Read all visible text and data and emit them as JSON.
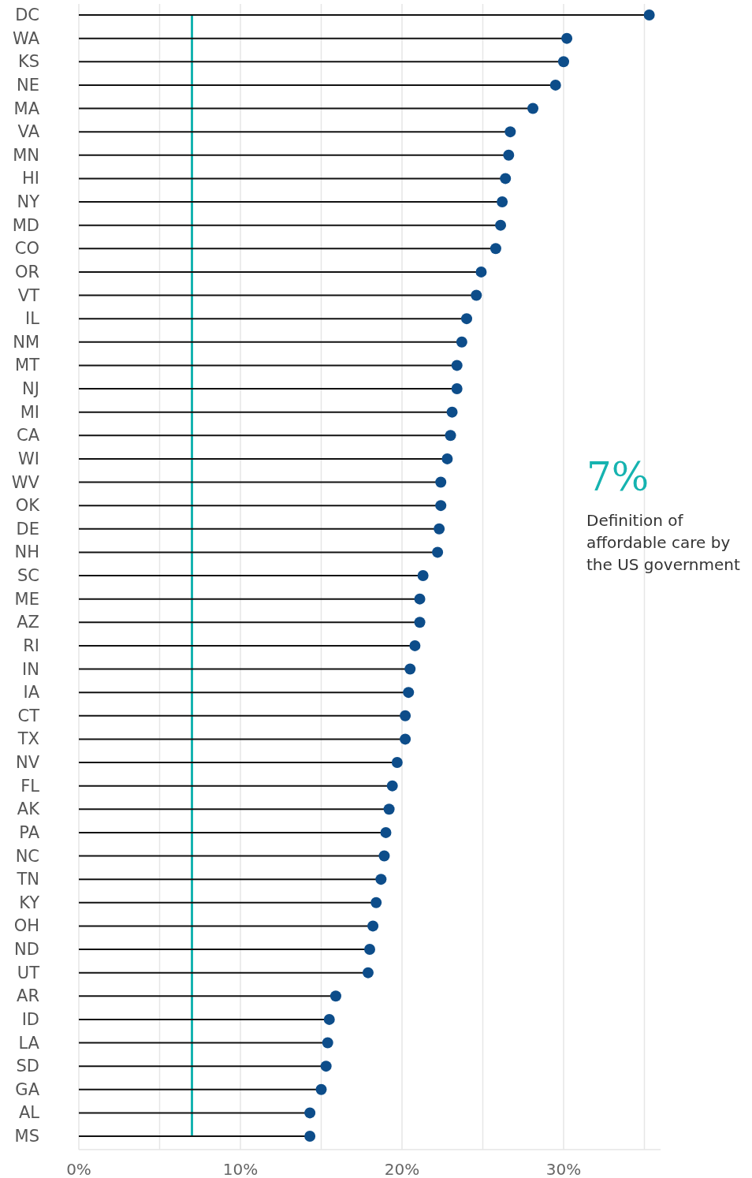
{
  "chart_data": {
    "type": "lollipop",
    "orientation": "horizontal",
    "categories": [
      "DC",
      "WA",
      "KS",
      "NE",
      "MA",
      "VA",
      "MN",
      "HI",
      "NY",
      "MD",
      "CO",
      "OR",
      "VT",
      "IL",
      "NM",
      "MT",
      "NJ",
      "MI",
      "CA",
      "WI",
      "WV",
      "OK",
      "DE",
      "NH",
      "SC",
      "ME",
      "AZ",
      "RI",
      "IN",
      "IA",
      "CT",
      "TX",
      "NV",
      "FL",
      "AK",
      "PA",
      "NC",
      "TN",
      "KY",
      "OH",
      "ND",
      "UT",
      "AR",
      "ID",
      "LA",
      "SD",
      "GA",
      "AL",
      "MS"
    ],
    "values": [
      35.3,
      30.2,
      30.0,
      29.5,
      28.1,
      26.7,
      26.6,
      26.4,
      26.2,
      26.1,
      25.8,
      24.9,
      24.6,
      24.0,
      23.7,
      23.4,
      23.4,
      23.1,
      23.0,
      22.8,
      22.4,
      22.4,
      22.3,
      22.2,
      21.3,
      21.1,
      21.1,
      20.8,
      20.5,
      20.4,
      20.2,
      20.2,
      19.7,
      19.4,
      19.2,
      19.0,
      18.9,
      18.7,
      18.4,
      18.2,
      18.0,
      17.9,
      15.9,
      15.5,
      15.4,
      15.3,
      15.0,
      14.3,
      14.3
    ],
    "color": "#0d4d8a",
    "xlim": [
      0,
      36
    ],
    "xticks": [
      {
        "value": 0,
        "label": "0%"
      },
      {
        "value": 5,
        "label": null
      },
      {
        "value": 10,
        "label": "10%"
      },
      {
        "value": 15,
        "label": null
      },
      {
        "value": 20,
        "label": "20%"
      },
      {
        "value": 25,
        "label": null
      },
      {
        "value": 30,
        "label": "30%"
      },
      {
        "value": 35,
        "label": null
      }
    ],
    "grid": "x",
    "marker": "circle",
    "ref_lines": [
      {
        "axis": "x",
        "value": 7,
        "label": "7%",
        "color": "#16b3b0"
      }
    ],
    "annotations": [
      "Definition of affordable care by the US government"
    ]
  }
}
